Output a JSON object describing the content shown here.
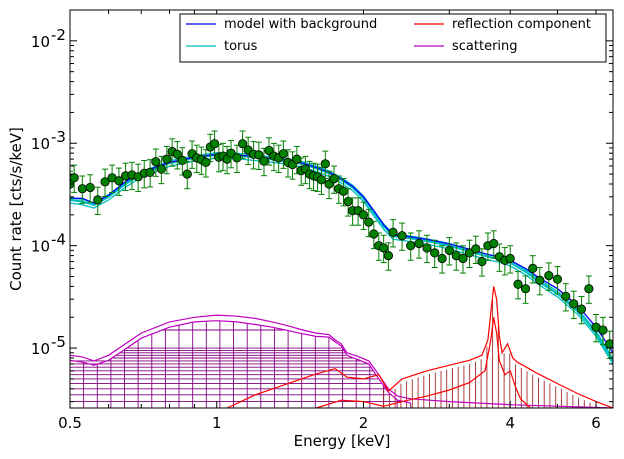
{
  "chart_data": {
    "type": "scatter",
    "title": "",
    "xlabel": "Energy [keV]",
    "ylabel": "Count rate [cts/s/keV]",
    "x_scale": "log",
    "y_scale": "log",
    "xlim": [
      0.5,
      6.5
    ],
    "ylim": [
      2.6e-06,
      0.02
    ],
    "x_ticks": [
      {
        "value": 0.5,
        "label": "0.5"
      },
      {
        "value": 1,
        "label": "1"
      },
      {
        "value": 2,
        "label": "2"
      },
      {
        "value": 4,
        "label": "4"
      },
      {
        "value": 6,
        "label": "6"
      }
    ],
    "y_ticks": [
      {
        "value": 1e-05,
        "mantissa": "10",
        "exponent": "-5"
      },
      {
        "value": 0.0001,
        "mantissa": "10",
        "exponent": "-4"
      },
      {
        "value": 0.001,
        "mantissa": "10",
        "exponent": "-3"
      },
      {
        "value": 0.01,
        "mantissa": "10",
        "exponent": "-2"
      }
    ],
    "grid": false,
    "legend_position": "top-right",
    "colors": {
      "model": "#0000ff",
      "torus": "#00bfbf",
      "reflection": "#ff0000",
      "scattering": "#bf00bf",
      "data": "#008000",
      "reflection_hatch": "#a52a2a",
      "scattering_hatch": "#800080"
    },
    "legend": [
      {
        "label": "model with background",
        "color": "#0000ff"
      },
      {
        "label": "reflection component",
        "color": "#ff0000"
      },
      {
        "label": "torus",
        "color": "#00bfbf"
      },
      {
        "label": "scattering",
        "color": "#bf00bf"
      }
    ],
    "series": {
      "model": {
        "x": [
          0.5,
          0.53,
          0.56,
          0.6,
          0.65,
          0.7,
          0.8,
          0.9,
          1.0,
          1.1,
          1.2,
          1.3,
          1.4,
          1.5,
          1.6,
          1.7,
          1.8,
          1.9,
          2.0,
          2.1,
          2.2,
          2.3,
          2.5,
          2.7,
          3.0,
          3.3,
          3.6,
          3.8,
          4.0,
          4.3,
          4.6,
          5.0,
          5.5,
          6.0,
          6.5
        ],
        "y": [
          0.00029,
          0.00029,
          0.00026,
          0.00031,
          0.00042,
          0.00052,
          0.00065,
          0.00073,
          0.00078,
          0.00077,
          0.00074,
          0.00071,
          0.00068,
          0.00064,
          0.00058,
          0.00052,
          0.00045,
          0.00038,
          0.0003,
          0.00022,
          0.00016,
          0.000128,
          0.000122,
          0.000115,
          0.000104,
          9.2e-05,
          8.2e-05,
          7.8e-05,
          7.2e-05,
          6e-05,
          4.8e-05,
          3.8e-05,
          2.6e-05,
          1.6e-05,
          9e-06
        ]
      },
      "torus": {
        "x": [
          0.5,
          0.53,
          0.56,
          0.6,
          0.65,
          0.7,
          0.8,
          0.9,
          1.0,
          1.1,
          1.2,
          1.3,
          1.4,
          1.5,
          1.6,
          1.7,
          1.8,
          1.9,
          2.0,
          2.1,
          2.2,
          2.3,
          2.5,
          2.7,
          3.0,
          3.3,
          3.6,
          3.8,
          4.0,
          4.3,
          4.6,
          5.0,
          5.5,
          6.0,
          6.5
        ],
        "y": [
          0.00028,
          0.00027,
          0.00025,
          0.0003,
          0.0004,
          0.0005,
          0.00064,
          0.00072,
          0.00077,
          0.00076,
          0.00073,
          0.0007,
          0.00067,
          0.00063,
          0.00057,
          0.00051,
          0.00044,
          0.00037,
          0.00029,
          0.00021,
          0.000155,
          0.000124,
          0.000118,
          0.000111,
          0.0001,
          8.8e-05,
          7.8e-05,
          7.4e-05,
          6.8e-05,
          5.6e-05,
          4.4e-05,
          3.4e-05,
          2.3e-05,
          1.4e-05,
          7.5e-06
        ]
      },
      "reflection": {
        "x": [
          1.05,
          1.2,
          1.4,
          1.6,
          1.75,
          1.85,
          2.0,
          2.15,
          2.25,
          2.4,
          2.7,
          3.0,
          3.3,
          3.5,
          3.6,
          3.65,
          3.7,
          3.75,
          3.8,
          3.85,
          3.95,
          4.05,
          4.15,
          4.25,
          4.5,
          5.0,
          5.5,
          6.0,
          6.5
        ],
        "y": [
          2.6e-06,
          3.5e-06,
          4.5e-06,
          5.6e-06,
          6.3e-06,
          5.2e-06,
          5e-06,
          5.5e-06,
          3.8e-06,
          5e-06,
          6e-06,
          6.8e-06,
          7.6e-06,
          8.5e-06,
          1.2e-05,
          2.2e-05,
          4e-05,
          3e-05,
          1.3e-05,
          9e-06,
          1.1e-05,
          8e-06,
          7.2e-06,
          6.8e-06,
          5.8e-06,
          4.5e-06,
          3.6e-06,
          3e-06,
          2.6e-06
        ]
      },
      "reflection_inner": {
        "x": [
          1.6,
          1.8,
          2.0,
          2.2,
          2.4,
          2.7,
          3.0,
          3.3,
          3.55,
          3.65,
          3.7,
          3.75,
          3.8,
          3.9,
          4.0,
          4.1,
          4.2,
          4.4
        ],
        "y": [
          2.6e-06,
          3.1e-06,
          3e-06,
          2.7e-06,
          3e-06,
          3.4e-06,
          3.9e-06,
          4.6e-06,
          6e-06,
          1.2e-05,
          2e-05,
          1.4e-05,
          7.5e-06,
          5.5e-06,
          6e-06,
          4.2e-06,
          3.2e-06,
          2.6e-06
        ]
      },
      "scattering": {
        "x": [
          0.5,
          0.53,
          0.56,
          0.6,
          0.65,
          0.7,
          0.8,
          0.9,
          1.0,
          1.1,
          1.2,
          1.3,
          1.4,
          1.5,
          1.6,
          1.7,
          1.75,
          1.8,
          1.85,
          1.95,
          2.05,
          2.15,
          2.25,
          2.35,
          2.5,
          3.0,
          4.0,
          6.5
        ],
        "y": [
          8.5e-06,
          8.2e-06,
          7.5e-06,
          8.5e-06,
          1.1e-05,
          1.4e-05,
          1.8e-05,
          2e-05,
          2.1e-05,
          2.05e-05,
          1.95e-05,
          1.8e-05,
          1.65e-05,
          1.5e-05,
          1.4e-05,
          1.35e-05,
          1.2e-05,
          1.1e-05,
          9e-06,
          8.3e-06,
          7.5e-06,
          5.5e-06,
          4e-06,
          3.4e-06,
          3.2e-06,
          3e-06,
          2.8e-06,
          2.6e-06
        ]
      },
      "scattering_hatch": {
        "x": [
          0.5,
          0.53,
          0.56,
          0.6,
          0.65,
          0.7,
          0.8,
          0.9,
          1.0,
          1.1,
          1.2,
          1.3,
          1.4,
          1.5,
          1.6,
          1.7,
          1.75,
          1.8,
          1.85,
          1.95,
          2.05,
          2.15,
          2.25,
          2.35,
          2.5
        ],
        "y": [
          7.6e-06,
          7.3e-06,
          6.8e-06,
          7.6e-06,
          9.8e-06,
          1.25e-05,
          1.6e-05,
          1.8e-05,
          1.85e-05,
          1.8e-05,
          1.7e-05,
          1.6e-05,
          1.48e-05,
          1.38e-05,
          1.3e-05,
          1.28e-05,
          1.15e-05,
          1.05e-05,
          8.5e-06,
          7.7e-06,
          7e-06,
          5e-06,
          3.7e-06,
          3.1e-06,
          2.9e-06
        ]
      },
      "data": {
        "x": [
          0.5,
          0.51,
          0.53,
          0.55,
          0.57,
          0.59,
          0.61,
          0.63,
          0.65,
          0.67,
          0.69,
          0.71,
          0.73,
          0.75,
          0.77,
          0.79,
          0.81,
          0.83,
          0.85,
          0.87,
          0.89,
          0.91,
          0.93,
          0.95,
          0.97,
          0.99,
          1.01,
          1.03,
          1.05,
          1.07,
          1.1,
          1.13,
          1.16,
          1.19,
          1.22,
          1.25,
          1.28,
          1.31,
          1.34,
          1.37,
          1.4,
          1.43,
          1.46,
          1.49,
          1.52,
          1.55,
          1.58,
          1.61,
          1.64,
          1.67,
          1.7,
          1.74,
          1.78,
          1.82,
          1.86,
          1.9,
          1.95,
          2.0,
          2.05,
          2.1,
          2.15,
          2.2,
          2.25,
          2.3,
          2.4,
          2.5,
          2.6,
          2.7,
          2.8,
          2.9,
          3.0,
          3.1,
          3.2,
          3.3,
          3.4,
          3.5,
          3.6,
          3.7,
          3.8,
          3.9,
          4.0,
          4.15,
          4.3,
          4.45,
          4.6,
          4.8,
          5.0,
          5.2,
          5.4,
          5.6,
          5.8,
          6.0,
          6.2,
          6.4
        ],
        "y": [
          0.0004,
          0.00046,
          0.00036,
          0.00037,
          0.00028,
          0.00042,
          0.00046,
          0.00043,
          0.00048,
          0.00049,
          0.00047,
          0.00051,
          0.00052,
          0.00066,
          0.00056,
          0.0007,
          0.00083,
          0.00078,
          0.00068,
          0.0005,
          0.00079,
          0.00072,
          0.00069,
          0.00065,
          0.00092,
          0.00099,
          0.00073,
          0.00075,
          0.0007,
          0.0008,
          0.00072,
          0.00099,
          0.00086,
          0.00078,
          0.00077,
          0.00067,
          0.00085,
          0.00075,
          0.00072,
          0.00079,
          0.00065,
          0.00062,
          0.0007,
          0.00054,
          0.00056,
          0.0005,
          0.00048,
          0.00047,
          0.00044,
          0.00063,
          0.0004,
          0.00045,
          0.00036,
          0.00034,
          0.00027,
          0.00022,
          0.00022,
          0.0002,
          0.00017,
          0.00013,
          0.0001,
          9.5e-05,
          8e-05,
          0.000135,
          0.000125,
          0.0001,
          0.000105,
          9.5e-05,
          8.5e-05,
          7.5e-05,
          9e-05,
          8e-05,
          7.5e-05,
          8.5e-05,
          9.3e-05,
          7e-05,
          0.0001,
          0.000105,
          7.8e-05,
          7.2e-05,
          7.5e-05,
          4.2e-05,
          3.8e-05,
          6e-05,
          4.6e-05,
          5.1e-05,
          4.7e-05,
          3.2e-05,
          2.7e-05,
          2.4e-05,
          3.8e-05,
          1.6e-05,
          1.5e-05,
          1.1e-05
        ]
      }
    }
  }
}
